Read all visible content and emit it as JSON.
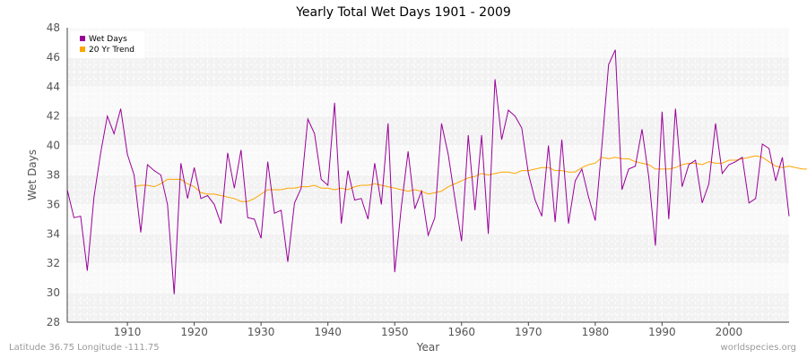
{
  "chart_data": {
    "type": "line",
    "title": "Yearly Total Wet Days 1901 - 2009",
    "xlabel": "Year",
    "ylabel": "Wet Days",
    "xlim": [
      1901,
      2009
    ],
    "ylim": [
      28,
      48
    ],
    "x_ticks": [
      1910,
      1920,
      1930,
      1940,
      1950,
      1960,
      1970,
      1980,
      1990,
      2000
    ],
    "y_ticks": [
      28,
      30,
      32,
      34,
      36,
      38,
      40,
      42,
      44,
      46,
      48
    ],
    "legend_position": "top-left",
    "grid": true,
    "series": [
      {
        "name": "Wet Days",
        "color": "#990099",
        "x_start": 1901,
        "values": [
          37.0,
          35.1,
          35.2,
          31.5,
          36.5,
          39.5,
          42.0,
          40.8,
          42.5,
          39.4,
          38.0,
          34.1,
          38.7,
          38.3,
          38.0,
          36.0,
          29.9,
          38.8,
          36.4,
          38.5,
          36.4,
          36.6,
          36.0,
          34.7,
          39.5,
          37.1,
          39.7,
          35.1,
          35.0,
          33.7,
          38.9,
          35.4,
          35.6,
          32.1,
          36.1,
          37.1,
          41.8,
          40.8,
          37.7,
          37.3,
          42.9,
          34.7,
          38.3,
          36.3,
          36.4,
          35.0,
          38.8,
          36.0,
          41.5,
          31.4,
          35.9,
          39.6,
          35.7,
          36.9,
          33.9,
          35.1,
          41.5,
          39.4,
          36.4,
          33.5,
          40.7,
          35.6,
          40.7,
          34.0,
          44.5,
          40.4,
          42.4,
          42.0,
          41.2,
          38.1,
          36.3,
          35.2,
          40.0,
          34.8,
          40.4,
          34.7,
          37.6,
          38.4,
          36.5,
          34.9,
          40.0,
          45.5,
          46.5,
          37.0,
          38.4,
          38.6,
          41.1,
          37.9,
          33.2,
          42.3,
          35.0,
          42.5,
          37.2,
          38.7,
          39.0,
          36.1,
          37.4,
          41.5,
          38.1,
          38.7,
          38.9,
          39.2,
          36.1,
          36.4,
          40.1,
          39.8,
          37.6,
          39.2,
          35.2
        ]
      },
      {
        "name": "20 Yr Trend",
        "color": "#ffa500",
        "x_start": 1911,
        "values": [
          37.2,
          37.3,
          37.3,
          37.2,
          37.4,
          37.7,
          37.7,
          37.7,
          37.4,
          37.2,
          36.8,
          36.7,
          36.7,
          36.6,
          36.5,
          36.4,
          36.2,
          36.2,
          36.4,
          36.7,
          37.0,
          37.0,
          37.0,
          37.1,
          37.1,
          37.2,
          37.2,
          37.3,
          37.1,
          37.1,
          37.0,
          37.1,
          37.0,
          37.2,
          37.3,
          37.3,
          37.4,
          37.3,
          37.2,
          37.1,
          37.0,
          36.9,
          37.0,
          36.9,
          36.7,
          36.8,
          36.9,
          37.2,
          37.4,
          37.6,
          37.8,
          37.9,
          38.1,
          38.0,
          38.1,
          38.2,
          38.2,
          38.1,
          38.3,
          38.3,
          38.4,
          38.5,
          38.5,
          38.3,
          38.3,
          38.2,
          38.2,
          38.5,
          38.7,
          38.8,
          39.2,
          39.1,
          39.2,
          39.1,
          39.1,
          38.9,
          38.8,
          38.7,
          38.4,
          38.4,
          38.4,
          38.5,
          38.7,
          38.8,
          38.8,
          38.7,
          38.9,
          38.8,
          38.8,
          39.0,
          39.0,
          39.1,
          39.2,
          39.3,
          39.2,
          38.9,
          38.6,
          38.5,
          38.6,
          38.5,
          38.4,
          38.4
        ]
      }
    ]
  },
  "footer": {
    "left": "Latitude 36.75 Longitude -111.75",
    "right": "worldspecies.org"
  }
}
